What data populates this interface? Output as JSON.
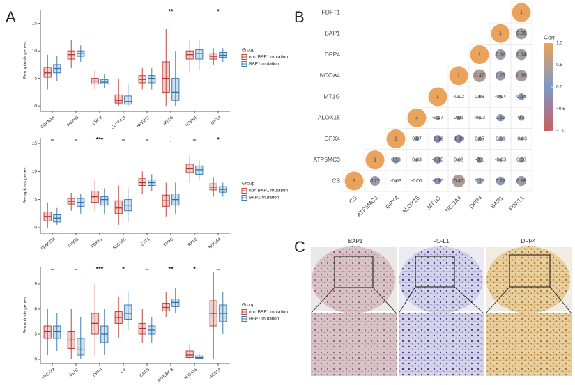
{
  "figure": {
    "panel_labels": [
      "A",
      "B",
      "C"
    ],
    "image_titles": [
      "BAP1",
      "PD-L1",
      "DPP4"
    ]
  },
  "chart_data": [
    {
      "type": "box",
      "ylabel": "Ferroptosis genes",
      "legend_title": "Group",
      "categories": [
        "CDKN1A",
        "HSPA5",
        "EMC2",
        "SLC7A11",
        "NFE2L2",
        "MT1G",
        "HSPB1",
        "GPX4"
      ],
      "annotations": [
        null,
        null,
        null,
        null,
        null,
        "**",
        null,
        "*"
      ],
      "ylim": [
        -1,
        17.5
      ],
      "yticks": [
        0,
        5,
        10,
        15
      ],
      "series": [
        {
          "name": "non BAP1 mutation",
          "color": "#b8312a",
          "values": [
            [
              3,
              5.2,
              6,
              7,
              9.3
            ],
            [
              7,
              8.5,
              9.3,
              10,
              12
            ],
            [
              3,
              4,
              4.5,
              5,
              6.5
            ],
            [
              0,
              0.5,
              1,
              2,
              5
            ],
            [
              3,
              4.2,
              4.8,
              5.5,
              7
            ],
            [
              0,
              2.5,
              5,
              8,
              14
            ],
            [
              6,
              8.5,
              9.3,
              10,
              12
            ],
            [
              7.5,
              8.5,
              9,
              9.5,
              10.5
            ]
          ]
        },
        {
          "name": "BAP1 mutation",
          "color": "#2a6fa8",
          "values": [
            [
              4.5,
              6,
              6.8,
              7.5,
              9
            ],
            [
              8,
              9,
              9.5,
              10,
              11
            ],
            [
              3.2,
              4,
              4.3,
              4.8,
              5.8
            ],
            [
              0,
              0.3,
              0.8,
              1.8,
              4
            ],
            [
              3,
              4.2,
              5,
              5.5,
              7
            ],
            [
              0,
              1,
              2.5,
              5,
              10
            ],
            [
              6.5,
              8.5,
              9.5,
              10.2,
              12
            ],
            [
              8,
              8.8,
              9.2,
              9.7,
              10.5
            ]
          ]
        }
      ]
    },
    {
      "type": "box",
      "ylabel": "Ferroptosis genes",
      "legend_title": "Group",
      "categories": [
        "FANCD2",
        "CISD1",
        "FDFT1",
        "SLC1A5",
        "SAT1",
        "TFRC",
        "RPL8",
        "NCOA4"
      ],
      "annotations": [
        "–",
        "–",
        "***",
        "–",
        "–",
        ".",
        "–",
        "*"
      ],
      "ylim": [
        -1,
        16
      ],
      "yticks": [
        0,
        5,
        10,
        15
      ],
      "series": [
        {
          "name": "non BAP1 mutation",
          "color": "#b8312a",
          "values": [
            [
              0,
              1.2,
              2,
              2.8,
              4.5
            ],
            [
              3,
              4.2,
              4.7,
              5.2,
              6.2
            ],
            [
              3,
              4.5,
              5.5,
              6.5,
              8.5
            ],
            [
              0.5,
              2.5,
              3.5,
              4.8,
              7.5
            ],
            [
              6,
              7.5,
              8,
              8.8,
              10
            ],
            [
              2,
              3.8,
              4.8,
              5.8,
              8
            ],
            [
              8,
              9.8,
              10.5,
              11.3,
              13
            ],
            [
              5.5,
              6.7,
              7.2,
              7.8,
              9
            ]
          ]
        },
        {
          "name": "BAP1 mutation",
          "color": "#2a6fa8",
          "values": [
            [
              0.5,
              1,
              1.7,
              2.3,
              3.5
            ],
            [
              2.5,
              3.8,
              4.5,
              5.2,
              6
            ],
            [
              2.5,
              4,
              5,
              5.5,
              7
            ],
            [
              1,
              3,
              4,
              5,
              7
            ],
            [
              6.5,
              7.5,
              8,
              8.5,
              9.5
            ],
            [
              2.5,
              4,
              5,
              6,
              8
            ],
            [
              8.5,
              9.5,
              10.3,
              11,
              12
            ],
            [
              5.5,
              6.3,
              6.8,
              7.3,
              8
            ]
          ]
        }
      ]
    },
    {
      "type": "box",
      "ylabel": "Ferroptosis genes",
      "legend_title": "Group",
      "categories": [
        "LPCAT3",
        "GLS2",
        "DPP4",
        "CS",
        "CARS",
        "ATP5MC3",
        "ALOX15",
        "ACSL4"
      ],
      "annotations": [
        "–",
        "–",
        "***",
        "*",
        "–",
        "**",
        "*",
        "–"
      ],
      "ylim": [
        -0.5,
        11
      ],
      "yticks": [
        0,
        3,
        6,
        9
      ],
      "series": [
        {
          "name": "non BAP1 mutation",
          "color": "#b8312a",
          "values": [
            [
              0.5,
              2.5,
              3.3,
              4,
              6
            ],
            [
              0,
              1.3,
              2.3,
              3.3,
              6
            ],
            [
              0.5,
              3,
              4.3,
              5.5,
              9
            ],
            [
              2.5,
              4.3,
              5,
              5.7,
              7.5
            ],
            [
              2,
              3,
              3.7,
              4.3,
              6
            ],
            [
              5,
              5.8,
              6.2,
              6.7,
              8
            ],
            [
              0,
              0.2,
              0.5,
              1,
              2
            ],
            [
              0,
              4,
              5.5,
              7,
              10.5
            ]
          ]
        },
        {
          "name": "BAP1 mutation",
          "color": "#2a6fa8",
          "values": [
            [
              1,
              2.5,
              3.3,
              4,
              5.5
            ],
            [
              0,
              0.5,
              1.2,
              2.5,
              5
            ],
            [
              0.5,
              2,
              3,
              4,
              6
            ],
            [
              3.5,
              4.8,
              5.5,
              6.5,
              8
            ],
            [
              2,
              3,
              3.5,
              4,
              5
            ],
            [
              5.5,
              6.3,
              6.8,
              7.2,
              8.5
            ],
            [
              0,
              0.1,
              0.2,
              0.4,
              0.8
            ],
            [
              3,
              4.5,
              5.5,
              6.5,
              8
            ]
          ]
        }
      ]
    },
    {
      "type": "corrplot",
      "categories": [
        "CS",
        "ATP5MC3",
        "GPX4",
        "ALOX15",
        "MT1G",
        "NCOA4",
        "DPP4",
        "BAP1",
        "FDFT1"
      ],
      "values": [
        [
          1,
          0.27,
          -0.03,
          -0.01,
          -0.15,
          0.46,
          0.12,
          0.22,
          0.28
        ],
        [
          null,
          1,
          0.13,
          0.03,
          -0.15,
          0.02,
          -0.1,
          -0.03,
          0.08
        ],
        [
          null,
          null,
          1,
          0.07,
          -0.16,
          -0.19,
          0.05,
          0.06,
          -0.03
        ],
        [
          null,
          null,
          null,
          1,
          -0.07,
          0.06,
          -0.03,
          0.15,
          0.1
        ],
        [
          null,
          null,
          null,
          null,
          1,
          -0.02,
          0.03,
          -0.04,
          0.14
        ],
        [
          null,
          null,
          null,
          null,
          null,
          1,
          0.47,
          0.26,
          0.38
        ],
        [
          null,
          null,
          null,
          null,
          null,
          null,
          1,
          0.32,
          0.34
        ],
        [
          null,
          null,
          null,
          null,
          null,
          null,
          null,
          1,
          0.36
        ],
        [
          null,
          null,
          null,
          null,
          null,
          null,
          null,
          null,
          1
        ]
      ],
      "colorbar_title": "Corr",
      "clim": [
        -1,
        1
      ],
      "colorscale": [
        "#c7605f",
        "#7c98c8",
        "#e9a35c"
      ],
      "cticks": [
        {
          "value": 1,
          "label": "1.0"
        },
        {
          "value": 0.5,
          "label": "0.5"
        },
        {
          "value": 0,
          "label": "0.0"
        },
        {
          "value": -0.5,
          "label": "−0.5"
        },
        {
          "value": -1,
          "label": "−1.0"
        }
      ]
    }
  ]
}
